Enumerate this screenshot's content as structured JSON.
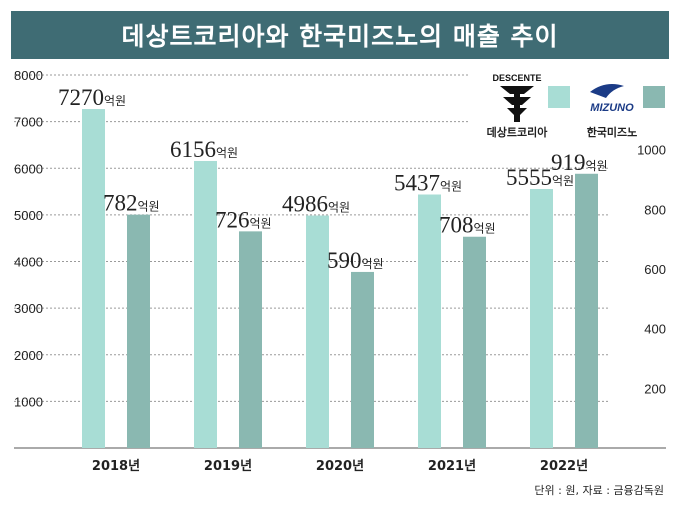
{
  "title": "데상트코리아와 한국미즈노의 매출 추이",
  "source": "단위 : 원, 자료 : 금융감독원",
  "logos": {
    "descente_text": "DESCENTE",
    "mizuno_text": "MIZUNO"
  },
  "colors": {
    "title_bg": "#3f6c74",
    "descente": "#a8ddd5",
    "mizuno": "#8ab8b1"
  },
  "chart_data": {
    "type": "bar",
    "categories": [
      "2018년",
      "2019년",
      "2020년",
      "2021년",
      "2022년"
    ],
    "unit": "억원",
    "series": [
      {
        "name": "데상트코리아",
        "axis": "left",
        "values": [
          7270,
          6156,
          4986,
          5437,
          5555
        ]
      },
      {
        "name": "한국미즈노",
        "axis": "right",
        "values": [
          782,
          726,
          590,
          708,
          919
        ]
      }
    ],
    "y_left": {
      "ticks": [
        "8000",
        "7000",
        "6000",
        "5000",
        "4000",
        "3000",
        "2000",
        "1000"
      ],
      "ylim": [
        0,
        8000
      ]
    },
    "y_right": {
      "ticks": [
        "1000",
        "800",
        "600",
        "400",
        "200"
      ],
      "ylim": [
        0,
        1250
      ]
    },
    "grid": true,
    "legend": "top-right"
  }
}
